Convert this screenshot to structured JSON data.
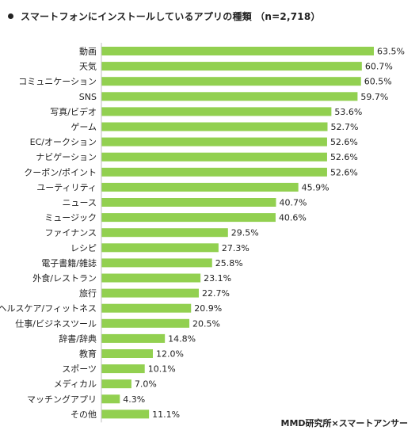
{
  "title": "スマートフォンにインストールしているアプリの種類 （n=2,718）",
  "source": "MMD研究所×スマートアンサー",
  "colors": {
    "bar": "#92d050",
    "axis": "#bfbfbf",
    "text": "#222222"
  },
  "chart_data": {
    "type": "bar",
    "orientation": "horizontal",
    "value_suffix": "%",
    "xlim": [
      0,
      63.5
    ],
    "grid": false,
    "legend": "none",
    "categories": [
      "動画",
      "天気",
      "コミュニケーション",
      "SNS",
      "写真/ビデオ",
      "ゲーム",
      "EC/オークション",
      "ナビゲーション",
      "クーポン/ポイント",
      "ユーティリティ",
      "ニュース",
      "ミュージック",
      "ファイナンス",
      "レシピ",
      "電子書籍/雑誌",
      "外食/レストラン",
      "旅行",
      "ヘルスケア/フィットネス",
      "仕事/ビジネスツール",
      "辞書/辞典",
      "教育",
      "スポーツ",
      "メディカル",
      "マッチングアプリ",
      "その他"
    ],
    "values": [
      63.5,
      60.7,
      60.5,
      59.7,
      53.6,
      52.7,
      52.6,
      52.6,
      52.6,
      45.9,
      40.7,
      40.6,
      29.5,
      27.3,
      25.8,
      23.1,
      22.7,
      20.9,
      20.5,
      14.8,
      12.0,
      10.1,
      7.0,
      4.3,
      11.1
    ],
    "value_labels": [
      "63.5%",
      "60.7%",
      "60.5%",
      "59.7%",
      "53.6%",
      "52.7%",
      "52.6%",
      "52.6%",
      "52.6%",
      "45.9%",
      "40.7%",
      "40.6%",
      "29.5%",
      "27.3%",
      "25.8%",
      "23.1%",
      "22.7%",
      "20.9%",
      "20.5%",
      "14.8%",
      "12.0%",
      "10.1%",
      "7.0%",
      "4.3%",
      "11.1%"
    ]
  }
}
